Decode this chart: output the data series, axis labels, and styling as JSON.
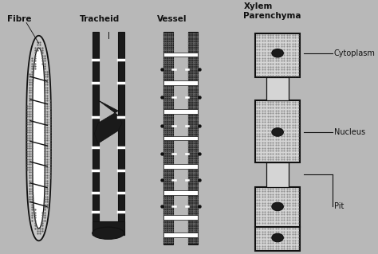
{
  "bg_color": "#b8b8b8",
  "fig_width": 4.74,
  "fig_height": 3.19,
  "dpi": 100,
  "labels": {
    "fibre": "Fibre",
    "tracheid": "Tracheid",
    "vessel": "Vessel",
    "xylem": "Xylem\nParenchyma",
    "cytoplasm": "Cytoplasm",
    "nucleus": "Nucleus",
    "pit": "Pit"
  },
  "colors": {
    "black": "#111111",
    "white": "#ffffff",
    "cell_fill": "#d0d0d0",
    "stipple_dark": "#444444",
    "nucleus_fill": "#1a1a1a",
    "bg": "#b8b8b8",
    "wall_dark": "#1a1a1a"
  }
}
